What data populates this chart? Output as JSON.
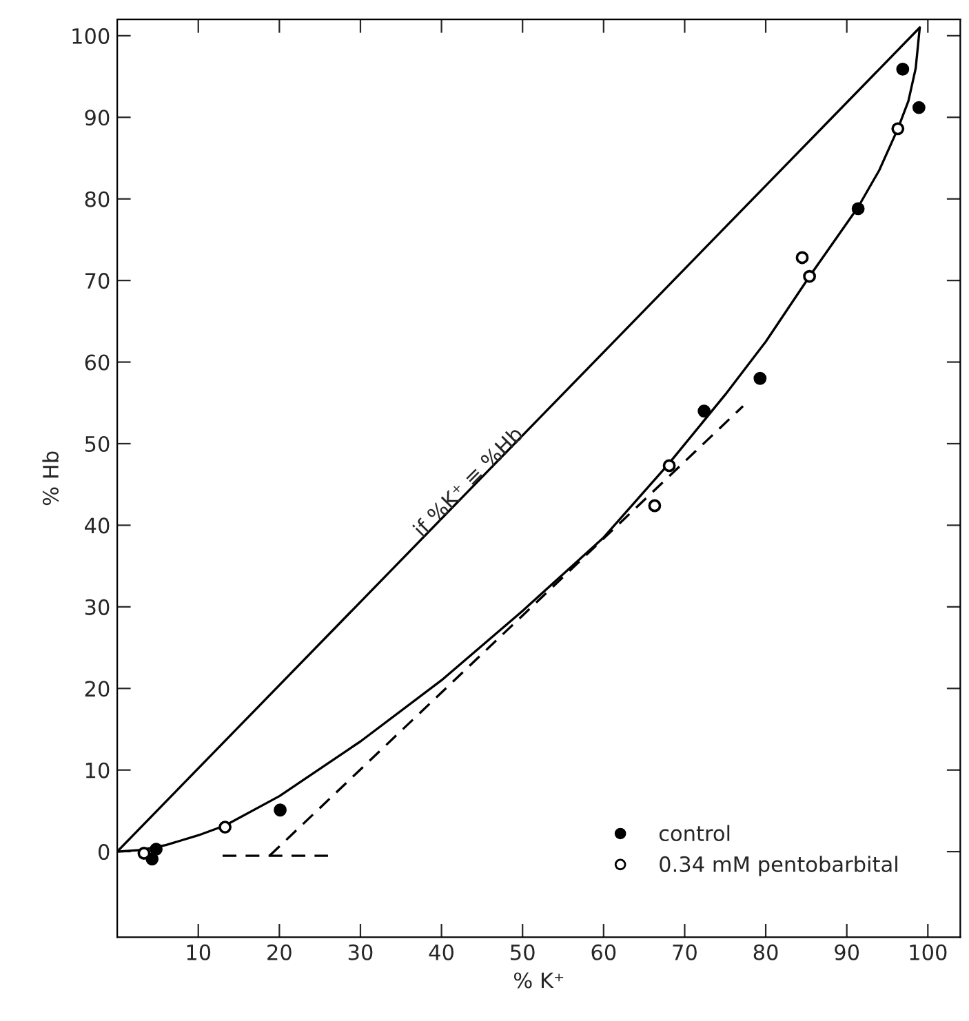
{
  "chart_data": {
    "type": "scatter",
    "xlabel": "% K⁺",
    "ylabel": "% Hb",
    "xlim": [
      0,
      104
    ],
    "ylim": [
      -10.5,
      102
    ],
    "xticks": [
      10,
      20,
      30,
      40,
      50,
      60,
      70,
      80,
      90,
      100
    ],
    "yticks": [
      0,
      10,
      20,
      30,
      40,
      50,
      60,
      70,
      80,
      90,
      100
    ],
    "grid": false,
    "legend": "lower right",
    "annotations": [
      {
        "text": "if %K⁺ ≡ %Hb",
        "x": 38,
        "y": 38
      }
    ],
    "series": [
      {
        "name": "control",
        "marker": "circle",
        "color": "#000000",
        "x": [
          4.3,
          4.8,
          20.1,
          72.4,
          79.3,
          91.4,
          96.9,
          98.9
        ],
        "values": [
          -0.9,
          0.3,
          5.1,
          54.0,
          58.0,
          78.8,
          95.9,
          91.2
        ]
      },
      {
        "name": "0.34 mM pentobarbital",
        "marker": "circle",
        "color": "#ffffff",
        "x": [
          3.3,
          13.3,
          66.3,
          68.1,
          84.5,
          85.4,
          96.3
        ],
        "values": [
          -0.2,
          3.0,
          42.4,
          47.3,
          72.8,
          70.5,
          88.6
        ]
      },
      {
        "type": "line",
        "color": "#000000",
        "line_style": "solid",
        "x": [
          0,
          99
        ],
        "values": [
          0,
          101
        ]
      },
      {
        "type": "line",
        "color": "#000000",
        "line_style": "solid",
        "x": [
          0,
          3,
          6,
          10,
          13.3,
          20,
          30,
          40,
          50,
          60,
          68,
          75,
          80,
          85.4,
          91.4,
          94,
          96.3,
          97.6,
          98.5,
          99
        ],
        "values": [
          0,
          0.2,
          0.8,
          2,
          3.2,
          6.8,
          13.5,
          21,
          29.5,
          38.5,
          47.5,
          56,
          62.5,
          70.5,
          79,
          83.5,
          88.6,
          92,
          96,
          101
        ]
      },
      {
        "type": "line",
        "color": "#000000",
        "line_style": "dashed",
        "x": [
          13,
          26
        ],
        "values": [
          -0.5,
          -0.5
        ]
      },
      {
        "type": "line",
        "color": "#000000",
        "line_style": "dashed",
        "x": [
          18.8,
          77.2
        ],
        "values": [
          -0.5,
          54.6
        ]
      }
    ]
  }
}
